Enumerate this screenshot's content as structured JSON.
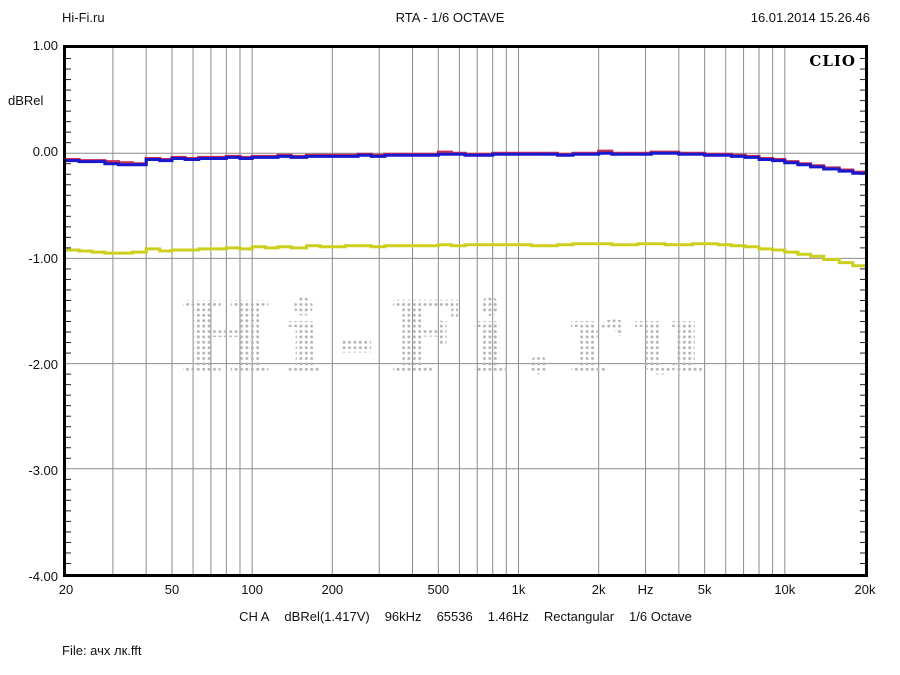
{
  "header": {
    "site": "Hi-Fi.ru",
    "title": "RTA - 1/6 OCTAVE",
    "datetime": "16.01.2014 15.26.46"
  },
  "chart_brand": "CLIO",
  "watermark": "Hi-Fi.ru",
  "axes": {
    "y_unit": "dBRel",
    "y_ticks": [
      "1.00",
      "0.00",
      "-1.00",
      "-2.00",
      "-3.00",
      "-4.00"
    ],
    "x_ticks": [
      {
        "label": "20",
        "hz": 20
      },
      {
        "label": "50",
        "hz": 50
      },
      {
        "label": "100",
        "hz": 100
      },
      {
        "label": "200",
        "hz": 200
      },
      {
        "label": "500",
        "hz": 500
      },
      {
        "label": "1k",
        "hz": 1000
      },
      {
        "label": "2k",
        "hz": 2000
      },
      {
        "label": "Hz",
        "hz": 3000
      },
      {
        "label": "5k",
        "hz": 5000
      },
      {
        "label": "10k",
        "hz": 10000
      },
      {
        "label": "20k",
        "hz": 20000
      }
    ]
  },
  "footer": {
    "caption": [
      "CH A",
      "dBRel(1.417V)",
      "96kHz",
      "65536",
      "1.46Hz",
      "Rectangular",
      "1/6 Octave"
    ],
    "file_label": "File: ачх лк.fft"
  },
  "colors": {
    "red": "#c62b50",
    "blue": "#1818cf",
    "yellow": "#cccf1e",
    "grid": "#8c8c8c",
    "tick": "#222222",
    "watermark_dot": "#b4b4b4"
  },
  "chart_data": {
    "type": "line",
    "title": "RTA - 1/6 OCTAVE",
    "xlabel": "Hz",
    "ylabel": "dBRel",
    "x_scale": "log",
    "xlim": [
      20,
      20000
    ],
    "ylim": [
      -4.0,
      1.0
    ],
    "grid": {
      "vlines_hz": [
        30,
        40,
        50,
        60,
        70,
        80,
        90,
        100,
        200,
        300,
        400,
        500,
        600,
        700,
        800,
        900,
        1000,
        2000,
        3000,
        4000,
        5000,
        6000,
        7000,
        8000,
        9000,
        10000
      ],
      "hlines_db": [
        0,
        -1,
        -2,
        -3
      ],
      "minor_tick_step_db": 0.1
    },
    "band_edges_hz": [
      20,
      22.4,
      25,
      28,
      31.5,
      35.5,
      40,
      45,
      50,
      56,
      63,
      71,
      80,
      90,
      100,
      112,
      125,
      140,
      160,
      180,
      200,
      224,
      250,
      280,
      315,
      355,
      400,
      450,
      500,
      560,
      630,
      710,
      800,
      900,
      1000,
      1120,
      1250,
      1400,
      1600,
      1800,
      2000,
      2240,
      2500,
      2800,
      3150,
      3550,
      4000,
      4500,
      5000,
      5600,
      6300,
      7100,
      8000,
      9000,
      10000,
      11200,
      12500,
      14000,
      16000,
      18000,
      20000
    ],
    "series": [
      {
        "name": "CH A red trace (dB)",
        "color_key": "red",
        "values": [
          -0.06,
          -0.07,
          -0.07,
          -0.08,
          -0.09,
          -0.1,
          -0.05,
          -0.06,
          -0.04,
          -0.05,
          -0.04,
          -0.04,
          -0.03,
          -0.04,
          -0.03,
          -0.03,
          -0.02,
          -0.03,
          -0.02,
          -0.02,
          -0.02,
          -0.02,
          -0.01,
          -0.02,
          -0.01,
          -0.01,
          -0.01,
          -0.01,
          0.01,
          0.0,
          -0.01,
          -0.01,
          0.0,
          0.0,
          0.0,
          0.0,
          0.0,
          -0.01,
          0.0,
          0.0,
          0.02,
          0.0,
          0.0,
          0.0,
          0.01,
          0.01,
          0.0,
          0.0,
          -0.01,
          -0.01,
          -0.02,
          -0.03,
          -0.05,
          -0.06,
          -0.08,
          -0.1,
          -0.12,
          -0.14,
          -0.16,
          -0.18
        ]
      },
      {
        "name": "CH A blue trace (dB)",
        "color_key": "blue",
        "values": [
          -0.07,
          -0.08,
          -0.08,
          -0.1,
          -0.11,
          -0.11,
          -0.06,
          -0.07,
          -0.05,
          -0.06,
          -0.05,
          -0.05,
          -0.04,
          -0.05,
          -0.04,
          -0.04,
          -0.03,
          -0.04,
          -0.03,
          -0.03,
          -0.03,
          -0.03,
          -0.02,
          -0.03,
          -0.02,
          -0.02,
          -0.02,
          -0.02,
          -0.01,
          -0.01,
          -0.02,
          -0.02,
          -0.01,
          -0.01,
          -0.01,
          -0.01,
          -0.01,
          -0.02,
          -0.01,
          -0.01,
          0.0,
          -0.01,
          -0.01,
          -0.01,
          0.0,
          0.0,
          -0.01,
          -0.01,
          -0.02,
          -0.02,
          -0.03,
          -0.04,
          -0.06,
          -0.07,
          -0.09,
          -0.11,
          -0.13,
          -0.15,
          -0.17,
          -0.19
        ]
      },
      {
        "name": "yellow trace (dB)",
        "color_key": "yellow",
        "values": [
          -0.92,
          -0.93,
          -0.94,
          -0.95,
          -0.95,
          -0.94,
          -0.91,
          -0.93,
          -0.92,
          -0.92,
          -0.91,
          -0.91,
          -0.9,
          -0.91,
          -0.89,
          -0.9,
          -0.89,
          -0.9,
          -0.88,
          -0.89,
          -0.89,
          -0.88,
          -0.88,
          -0.89,
          -0.88,
          -0.88,
          -0.88,
          -0.88,
          -0.87,
          -0.88,
          -0.87,
          -0.87,
          -0.87,
          -0.87,
          -0.87,
          -0.88,
          -0.88,
          -0.87,
          -0.86,
          -0.86,
          -0.86,
          -0.87,
          -0.87,
          -0.86,
          -0.86,
          -0.87,
          -0.87,
          -0.86,
          -0.86,
          -0.87,
          -0.88,
          -0.89,
          -0.91,
          -0.92,
          -0.94,
          -0.96,
          -0.98,
          -1.01,
          -1.04,
          -1.07
        ]
      }
    ]
  }
}
